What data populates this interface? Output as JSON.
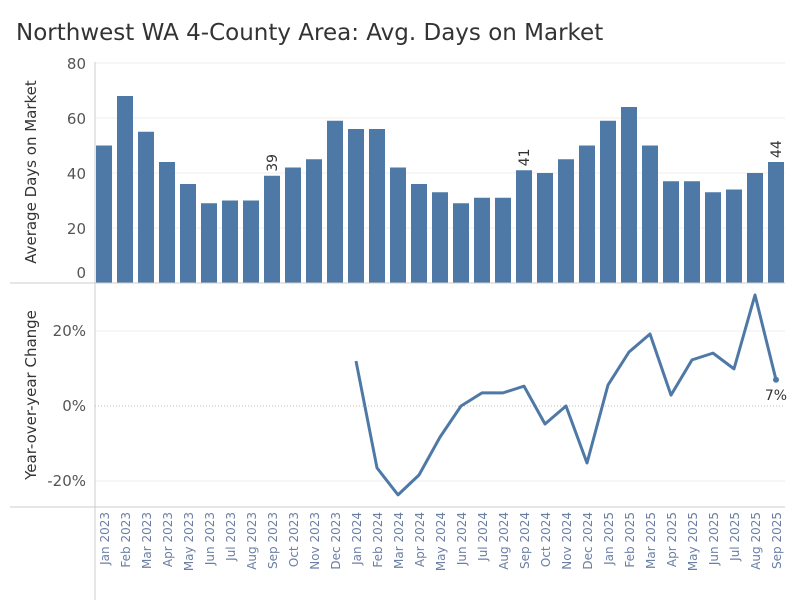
{
  "chart_data": [
    {
      "type": "bar",
      "title": "Northwest WA 4-County Area: Avg. Days on Market",
      "ylabel": "Average Days on Market",
      "ylim": [
        0,
        80
      ],
      "yticks": [
        "0",
        "20",
        "40",
        "60",
        "80"
      ],
      "categories": [
        "Jan 2023",
        "Feb 2023",
        "Mar 2023",
        "Apr 2023",
        "May 2023",
        "Jun 2023",
        "Jul 2023",
        "Aug 2023",
        "Sep 2023",
        "Oct 2023",
        "Nov 2023",
        "Dec 2023",
        "Jan 2024",
        "Feb 2024",
        "Mar 2024",
        "Apr 2024",
        "May 2024",
        "Jun 2024",
        "Jul 2024",
        "Aug 2024",
        "Sep 2024",
        "Oct 2024",
        "Nov 2024",
        "Dec 2024",
        "Jan 2025",
        "Feb 2025",
        "Mar 2025",
        "Apr 2025",
        "May 2025",
        "Jun 2025",
        "Jul 2025",
        "Aug 2025",
        "Sep 2025"
      ],
      "values": [
        50,
        68,
        55,
        44,
        36,
        29,
        30,
        30,
        39,
        42,
        45,
        59,
        56,
        56,
        42,
        36,
        33,
        29,
        31,
        31,
        41,
        40,
        45,
        50,
        59,
        64,
        50,
        37,
        37,
        33,
        34,
        40,
        44
      ],
      "data_labels": {
        "Sep 2023": "39",
        "Sep 2024": "41",
        "Sep 2025": "44"
      },
      "color": "#4e79a7",
      "grid": true
    },
    {
      "type": "line",
      "ylabel": "Year-over-year Change",
      "yticks": [
        "-20%",
        "0%",
        "20%"
      ],
      "ylim": [
        -30,
        30
      ],
      "x": [
        "Jan 2024",
        "Feb 2024",
        "Mar 2024",
        "Apr 2024",
        "May 2024",
        "Jun 2024",
        "Jul 2024",
        "Aug 2024",
        "Sep 2024",
        "Oct 2024",
        "Nov 2024",
        "Dec 2024",
        "Jan 2025",
        "Feb 2025",
        "Mar 2025",
        "Apr 2025",
        "May 2025",
        "Jun 2025",
        "Jul 2025",
        "Aug 2025",
        "Sep 2025"
      ],
      "values": [
        12,
        -16.5,
        -23.7,
        -18.4,
        -8.3,
        0,
        3.5,
        3.5,
        5.3,
        -4.8,
        0,
        -15.2,
        5.6,
        14.4,
        19.2,
        2.9,
        12.3,
        14.1,
        9.9,
        29.6,
        7
      ],
      "data_labels": {
        "Sep 2025": "7%"
      },
      "color": "#4e79a7",
      "grid": true
    }
  ]
}
